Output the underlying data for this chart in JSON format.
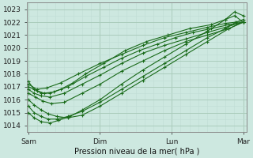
{
  "xlabel": "Pression niveau de la mer( hPa )",
  "ylim": [
    1013.5,
    1023.5
  ],
  "yticks": [
    1014,
    1015,
    1016,
    1017,
    1018,
    1019,
    1020,
    1021,
    1022,
    1023
  ],
  "xtick_labels": [
    "Sam",
    "Dim",
    "Lun",
    "Mar"
  ],
  "xtick_positions": [
    0,
    1,
    2,
    3
  ],
  "xlim": [
    -0.02,
    3.05
  ],
  "bg_color": "#cde8e0",
  "line_color": "#1a6b1a",
  "grid_color_major": "#aaccbb",
  "grid_color_minor": "#c0ddd5",
  "series": [
    {
      "x": [
        0.0,
        0.12,
        0.25,
        0.45,
        0.7,
        1.0,
        1.3,
        1.6,
        1.9,
        2.2,
        2.5,
        2.75,
        2.9,
        3.0
      ],
      "y": [
        1017.2,
        1016.8,
        1016.9,
        1017.3,
        1018.0,
        1018.8,
        1019.5,
        1020.2,
        1020.8,
        1021.2,
        1021.6,
        1021.9,
        1022.0,
        1022.0
      ]
    },
    {
      "x": [
        0.0,
        0.12,
        0.22,
        0.35,
        0.55,
        0.8,
        1.05,
        1.3,
        1.55,
        1.8,
        2.05,
        2.3,
        2.55,
        2.8,
        3.0
      ],
      "y": [
        1017.0,
        1016.7,
        1016.5,
        1016.6,
        1017.0,
        1017.8,
        1018.5,
        1019.2,
        1019.8,
        1020.3,
        1020.8,
        1021.2,
        1021.5,
        1021.8,
        1022.0
      ]
    },
    {
      "x": [
        0.0,
        0.08,
        0.18,
        0.3,
        0.5,
        0.75,
        1.0,
        1.3,
        1.6,
        1.9,
        2.2,
        2.5,
        2.75,
        3.0
      ],
      "y": [
        1016.8,
        1016.5,
        1016.3,
        1016.2,
        1016.5,
        1017.2,
        1017.9,
        1018.8,
        1019.6,
        1020.2,
        1020.7,
        1021.2,
        1021.6,
        1022.0
      ]
    },
    {
      "x": [
        0.0,
        0.1,
        0.2,
        0.32,
        0.5,
        0.75,
        1.0,
        1.3,
        1.6,
        1.9,
        2.2,
        2.5,
        2.8,
        3.0
      ],
      "y": [
        1016.5,
        1016.2,
        1015.9,
        1015.7,
        1015.8,
        1016.5,
        1017.2,
        1018.2,
        1019.0,
        1019.8,
        1020.5,
        1021.0,
        1021.5,
        1022.0
      ]
    },
    {
      "x": [
        0.0,
        0.08,
        0.18,
        0.28,
        0.4,
        0.55,
        0.75,
        1.0,
        1.3,
        1.6,
        1.9,
        2.2,
        2.5,
        2.8,
        3.0
      ],
      "y": [
        1016.0,
        1015.6,
        1015.2,
        1014.9,
        1014.7,
        1014.6,
        1014.8,
        1015.5,
        1016.5,
        1017.5,
        1018.5,
        1019.5,
        1020.5,
        1021.5,
        1022.0
      ]
    },
    {
      "x": [
        0.0,
        0.08,
        0.18,
        0.28,
        0.4,
        0.55,
        0.75,
        1.0,
        1.3,
        1.6,
        1.9,
        2.2,
        2.5,
        2.75,
        2.9,
        3.0
      ],
      "y": [
        1015.5,
        1015.0,
        1014.7,
        1014.5,
        1014.5,
        1014.7,
        1015.1,
        1015.8,
        1016.8,
        1017.8,
        1018.8,
        1019.8,
        1020.8,
        1021.5,
        1022.0,
        1022.2
      ]
    },
    {
      "x": [
        0.0,
        0.08,
        0.18,
        0.3,
        0.42,
        0.58,
        0.75,
        1.0,
        1.3,
        1.6,
        1.9,
        2.2,
        2.5,
        2.75,
        2.88,
        3.0
      ],
      "y": [
        1015.0,
        1014.6,
        1014.3,
        1014.2,
        1014.4,
        1014.7,
        1015.2,
        1016.0,
        1017.2,
        1018.3,
        1019.3,
        1020.3,
        1021.3,
        1022.2,
        1022.8,
        1022.5
      ]
    },
    {
      "x": [
        0.0,
        0.08,
        0.18,
        0.3,
        0.45,
        0.62,
        0.8,
        1.05,
        1.35,
        1.65,
        1.95,
        2.25,
        2.55,
        2.75,
        2.88,
        3.0
      ],
      "y": [
        1017.4,
        1016.8,
        1016.5,
        1016.5,
        1016.8,
        1017.3,
        1018.0,
        1018.8,
        1019.8,
        1020.5,
        1021.0,
        1021.5,
        1021.8,
        1022.2,
        1022.5,
        1022.0
      ]
    }
  ]
}
